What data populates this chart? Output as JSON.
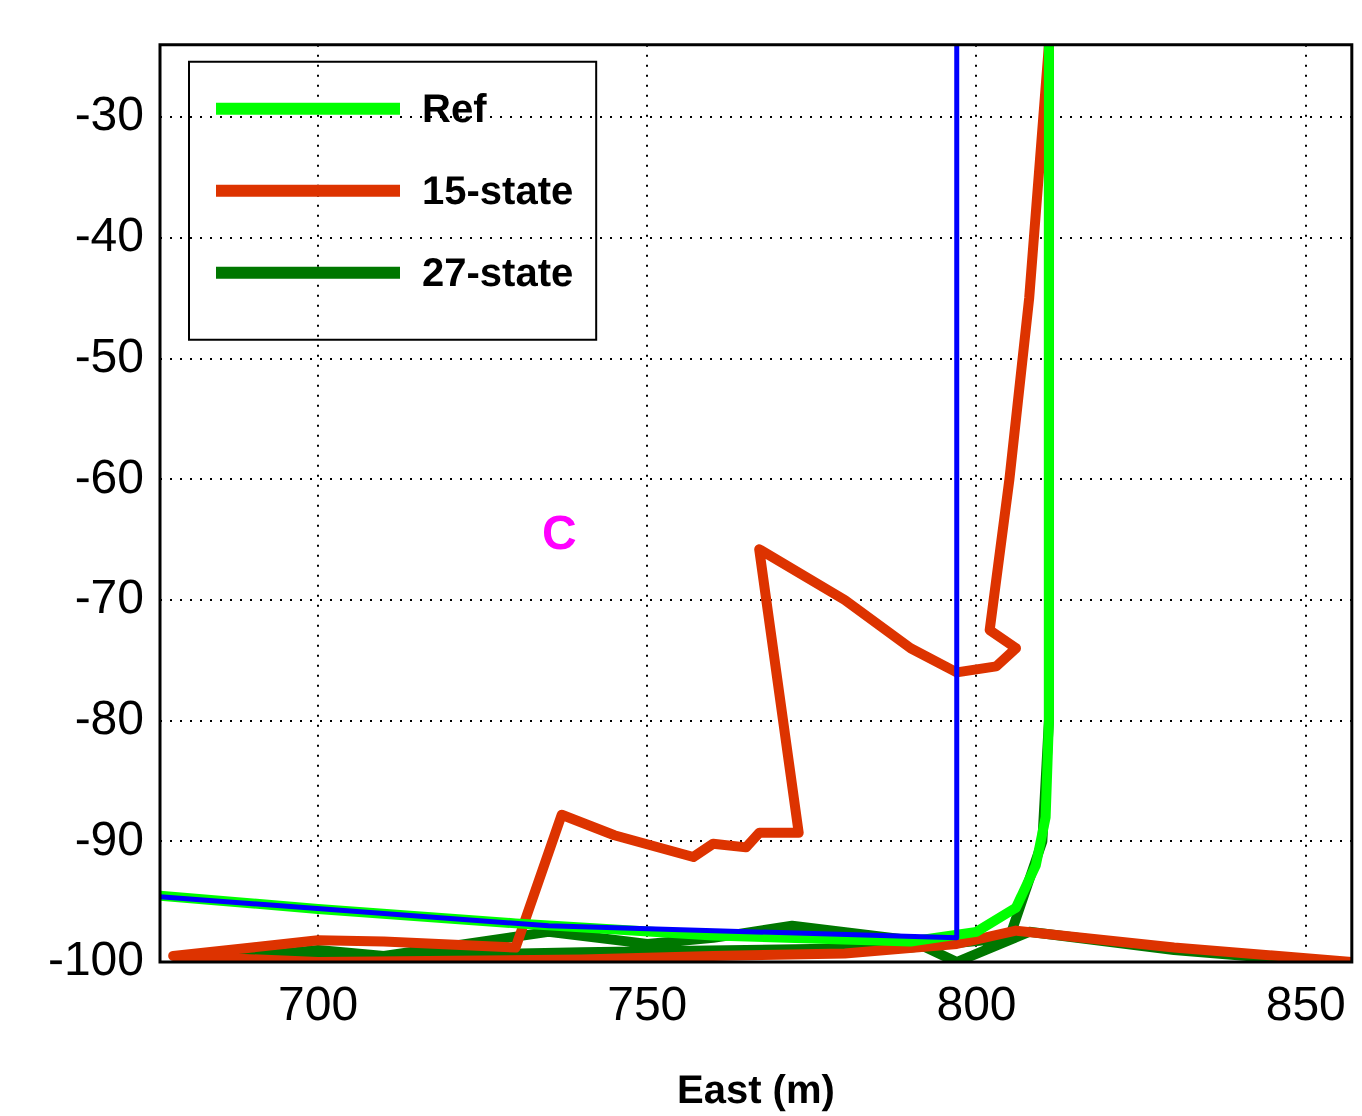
{
  "chart_data": {
    "type": "line",
    "xlabel": "East (m)",
    "annotations": [
      "C"
    ],
    "xlim": [
      676,
      857
    ],
    "xticks": [
      700,
      750,
      800,
      850
    ],
    "ylim": [
      -100,
      -24
    ],
    "yticks": [
      -100,
      -90,
      -80,
      -70,
      -60,
      -50,
      -40,
      -30
    ],
    "grid": true,
    "legend": "top left",
    "marker": "none",
    "line_style": "solid",
    "series": [
      {
        "color": "#0000ff",
        "x": [
          676,
          735,
          797,
          797
        ],
        "values": [
          -94.6,
          -97,
          -98,
          -24
        ]
      },
      {
        "name": "Ref",
        "color": "#00ff00",
        "x": [
          676,
          700,
          730,
          760,
          790,
          800,
          806,
          809,
          810.5,
          811,
          811
        ],
        "values": [
          -94.5,
          -95.6,
          -96.8,
          -97.8,
          -98.3,
          -97.5,
          -95.5,
          -92,
          -88,
          -80,
          -24
        ]
      },
      {
        "name": "15-state",
        "color": "#dd3300",
        "x": [
          857,
          830,
          806,
          797,
          780,
          760,
          740,
          700,
          678,
          690,
          700,
          710,
          730,
          737,
          745,
          757,
          760,
          765,
          767,
          773,
          767,
          780,
          790,
          797,
          803,
          806,
          802,
          805,
          808,
          811
        ],
        "values": [
          -100,
          -98.8,
          -97.4,
          -98.5,
          -99.3,
          -99.5,
          -99.8,
          -100,
          -99.5,
          -98.8,
          -98.2,
          -98.3,
          -98.8,
          -87.8,
          -89.5,
          -91.3,
          -90.2,
          -90.5,
          -89.3,
          -89.3,
          -65.8,
          -70,
          -74,
          -76,
          -75.5,
          -74,
          -72.5,
          -60,
          -45,
          -24
        ]
      },
      {
        "name": "27-state",
        "color": "#007700",
        "x": [
          852,
          830,
          808,
          797,
          790,
          772,
          760,
          750,
          735,
          710,
          700,
          685,
          700,
          740,
          790,
          805,
          810,
          811,
          811
        ],
        "values": [
          -100,
          -99,
          -97.5,
          -100,
          -98.2,
          -97,
          -98,
          -98.5,
          -97.5,
          -99.5,
          -99,
          -99.8,
          -99.6,
          -99.2,
          -98.8,
          -98,
          -90,
          -80,
          -24
        ]
      }
    ]
  }
}
